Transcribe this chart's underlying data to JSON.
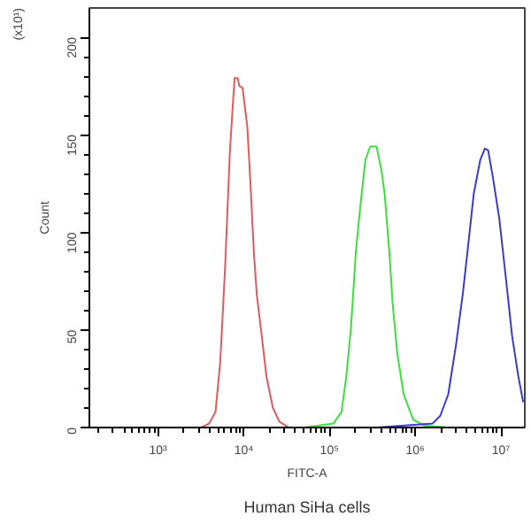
{
  "chart_data": {
    "type": "line",
    "xlabel": "FITC-A",
    "ylabel": "Count",
    "annotations": [
      "(x10¹)",
      "Human SiHa cells"
    ],
    "log": "x",
    "grid": false,
    "marker": "none",
    "line_style": "solid",
    "xlim": [
      158,
      19000000
    ],
    "ylim": [
      0,
      215
    ],
    "xticks": [
      {
        "value": 1000,
        "label": "10³"
      },
      {
        "value": 10000,
        "label": "10⁴"
      },
      {
        "value": 100000,
        "label": "10⁵"
      },
      {
        "value": 1000000,
        "label": "10⁶"
      },
      {
        "value": 10000000,
        "label": "10⁷"
      }
    ],
    "yticks": [
      0,
      50,
      100,
      150,
      200
    ],
    "series": [
      {
        "color": "#e05a60",
        "x": [
          1700,
          3180,
          3940,
          4680,
          5320,
          6040,
          6880,
          7490,
          7820,
          8510,
          8890,
          9690,
          11000,
          12000,
          13100,
          14200,
          16200,
          18400,
          21900,
          26000,
          33600
        ],
        "values": [
          0,
          0,
          2,
          8,
          34,
          81,
          141,
          167,
          179,
          179,
          175,
          174,
          154,
          124,
          90,
          68,
          47,
          26,
          10,
          3,
          0
        ]
      },
      {
        "color": "#3de03d",
        "x": [
          51500,
          111000,
          138000,
          157000,
          178000,
          203000,
          231000,
          262000,
          298000,
          354000,
          403000,
          439000,
          499000,
          544000,
          618000,
          733000,
          948000,
          1280000,
          2430000
        ],
        "values": [
          0,
          2,
          8,
          26,
          51,
          90,
          115,
          137,
          144,
          144,
          132,
          120,
          90,
          64,
          38,
          17,
          4,
          1,
          0
        ]
      },
      {
        "color": "#3a3acc",
        "x": [
          354000,
          1590000,
          1960000,
          2430000,
          3010000,
          3580000,
          4070000,
          4830000,
          5730000,
          6520000,
          7100000,
          8080000,
          9580000,
          11400000,
          13500000,
          16000000,
          18200000
        ],
        "values": [
          0,
          2,
          6,
          17,
          43,
          68,
          90,
          120,
          137,
          143,
          142,
          128,
          107,
          77,
          47,
          26,
          13
        ]
      }
    ]
  }
}
